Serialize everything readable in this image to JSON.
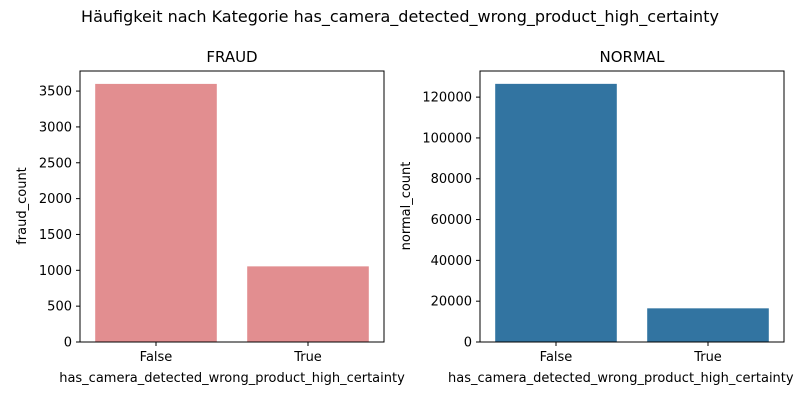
{
  "suptitle": "Häufigkeit nach Kategorie has_camera_detected_wrong_product_high_certainty",
  "colors": {
    "fraud": "#e28e90",
    "normal": "#3274a1",
    "axis": "#000000"
  },
  "chart_data": [
    {
      "type": "bar",
      "title": "FRAUD",
      "categories": [
        "False",
        "True"
      ],
      "values": [
        3600,
        1055
      ],
      "xlabel": "has_camera_detected_wrong_product_high_certainty",
      "ylabel": "fraud_count",
      "ylim": [
        0,
        3780
      ],
      "yticks": [
        0,
        500,
        1000,
        1500,
        2000,
        2500,
        3000,
        3500
      ],
      "ytick_labels": [
        "0",
        "500",
        "1000",
        "1500",
        "2000",
        "2500",
        "3000",
        "3500"
      ],
      "color": "#e28e90",
      "grid": false
    },
    {
      "type": "bar",
      "title": "NORMAL",
      "categories": [
        "False",
        "True"
      ],
      "values": [
        126500,
        16500
      ],
      "xlabel": "has_camera_detected_wrong_product_high_certainty",
      "ylabel": "normal_count",
      "ylim": [
        0,
        132800
      ],
      "yticks": [
        0,
        20000,
        40000,
        60000,
        80000,
        100000,
        120000
      ],
      "ytick_labels": [
        "0",
        "20000",
        "40000",
        "60000",
        "80000",
        "100000",
        "120000"
      ],
      "color": "#3274a1",
      "grid": false
    }
  ]
}
